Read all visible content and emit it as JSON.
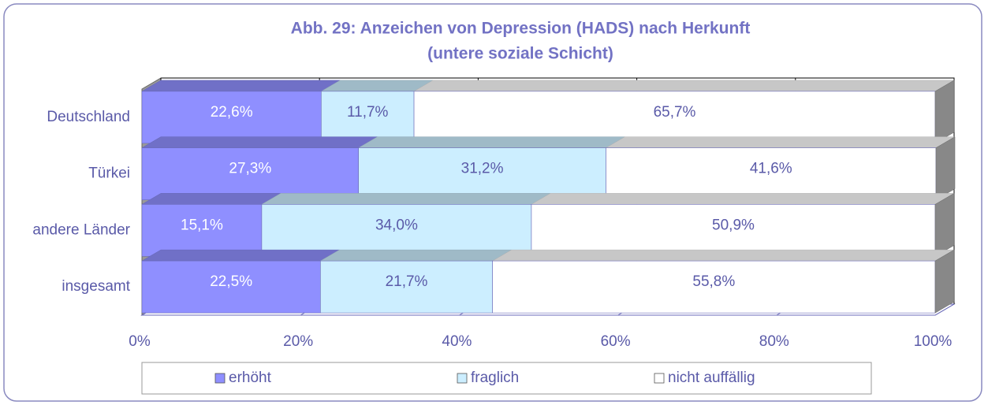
{
  "chart_data": {
    "type": "stacked-bar-horizontal-3d",
    "title": "Abb. 29:  Anzeichen von Depression (HADS) nach Herkunft",
    "subtitle": "(untere soziale Schicht)",
    "categories": [
      "Deutschland",
      "Türkei",
      "andere Länder",
      "insgesamt"
    ],
    "series": [
      {
        "name": "erhöht",
        "color": "#8f8fff",
        "values": [
          22.6,
          27.3,
          15.1,
          22.5
        ],
        "value_labels": [
          "22,6%",
          "27,3%",
          "15,1%",
          "22,5%"
        ]
      },
      {
        "name": "fraglich",
        "color": "#cceeff",
        "values": [
          11.7,
          31.2,
          34.0,
          21.7
        ],
        "value_labels": [
          "11,7%",
          "31,2%",
          "34,0%",
          "21,7%"
        ]
      },
      {
        "name": "nicht auffällig",
        "color": "#ffffff",
        "values": [
          65.7,
          41.6,
          50.9,
          55.8
        ],
        "value_labels": [
          "65,7%",
          "41,6%",
          "50,9%",
          "55,8%"
        ]
      }
    ],
    "xlim": [
      0,
      100
    ],
    "xticks": [
      {
        "value": 0,
        "label": "0%"
      },
      {
        "value": 20,
        "label": "20%"
      },
      {
        "value": 40,
        "label": "40%"
      },
      {
        "value": 60,
        "label": "60%"
      },
      {
        "value": 80,
        "label": "80%"
      },
      {
        "value": 100,
        "label": "100%"
      }
    ],
    "grid": true,
    "legend": "bottom"
  }
}
